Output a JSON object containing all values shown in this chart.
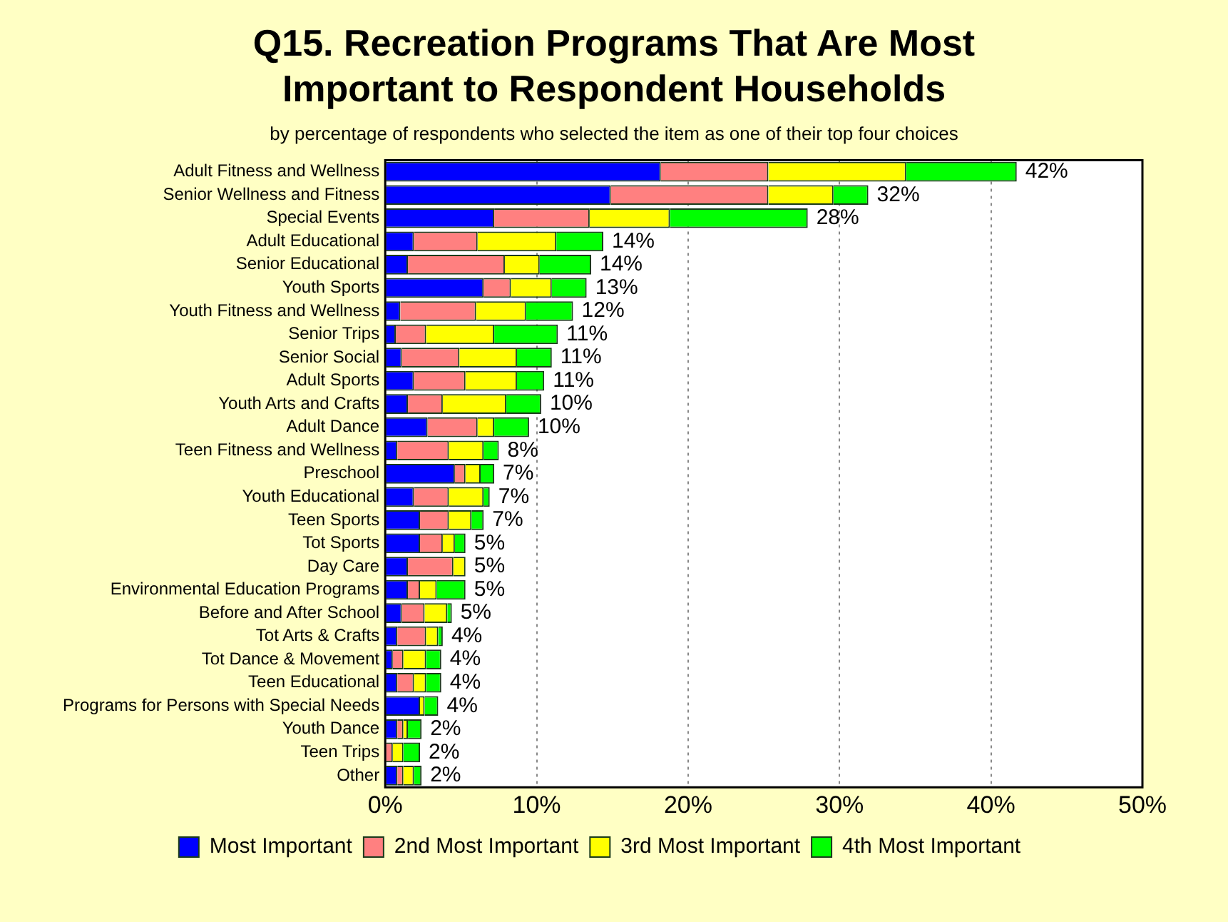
{
  "chart_data": {
    "type": "bar",
    "orientation": "horizontal",
    "stacked": true,
    "title": "Q15. Recreation Programs That Are Most Important to Respondent Households",
    "subtitle": "by percentage of respondents who selected the item as one of their top four choices",
    "categories": [
      "Adult Fitness and Wellness",
      "Senior Wellness and Fitness",
      "Special Events",
      "Adult Educational",
      "Senior Educational",
      "Youth Sports",
      "Youth Fitness and Wellness",
      "Senior Trips",
      "Senior Social",
      "Adult Sports",
      "Youth Arts and Crafts",
      "Adult Dance",
      "Teen Fitness and Wellness",
      "Preschool",
      "Youth Educational",
      "Teen Sports",
      "Tot Sports",
      "Day Care",
      "Environmental Education Programs",
      "Before and After School",
      "Tot Arts & Crafts",
      "Tot Dance & Movement",
      "Teen Educational",
      "Programs for Persons with Special Needs",
      "Youth Dance",
      "Teen Trips",
      "Other"
    ],
    "series": [
      {
        "name": "Most Important",
        "color": "#0000ff",
        "values": [
          18.2,
          14.9,
          7.2,
          1.9,
          1.5,
          6.5,
          1.0,
          0.7,
          1.1,
          1.9,
          1.5,
          2.8,
          0.8,
          4.6,
          1.9,
          2.3,
          2.3,
          1.5,
          1.5,
          1.1,
          0.8,
          0.5,
          0.8,
          2.3,
          0.8,
          0,
          0.8
        ]
      },
      {
        "name": "2nd Most Important",
        "color": "#ff8080",
        "values": [
          7.1,
          10.4,
          6.3,
          4.2,
          6.4,
          1.8,
          5.0,
          2.0,
          3.8,
          3.4,
          2.3,
          3.3,
          3.4,
          0.7,
          2.3,
          1.9,
          1.5,
          3.0,
          0.8,
          1.5,
          1.9,
          0.7,
          1.1,
          0,
          0.4,
          0.5,
          0.4
        ]
      },
      {
        "name": "3rd Most Important",
        "color": "#ffff00",
        "values": [
          9.1,
          4.3,
          5.3,
          5.2,
          2.3,
          2.7,
          3.3,
          4.5,
          3.8,
          3.4,
          4.2,
          1.1,
          2.3,
          1.0,
          2.3,
          1.5,
          0.8,
          0.8,
          1.1,
          1.5,
          0.8,
          1.5,
          0.8,
          0.3,
          0.3,
          0.7,
          0.7
        ]
      },
      {
        "name": "4th Most Important",
        "color": "#00ff00",
        "values": [
          7.3,
          2.3,
          9.1,
          3.1,
          3.4,
          2.3,
          3.1,
          4.2,
          2.3,
          1.8,
          2.3,
          2.3,
          1.0,
          0.9,
          0.4,
          0.8,
          0.7,
          0,
          1.9,
          0.3,
          0.3,
          1.0,
          1.0,
          0.9,
          0.9,
          1.1,
          0.5
        ]
      }
    ],
    "totals": [
      "42%",
      "32%",
      "28%",
      "14%",
      "14%",
      "13%",
      "12%",
      "11%",
      "11%",
      "11%",
      "10%",
      "10%",
      "8%",
      "7%",
      "7%",
      "7%",
      "5%",
      "5%",
      "5%",
      "5%",
      "4%",
      "4%",
      "4%",
      "4%",
      "2%",
      "2%",
      "2%"
    ],
    "xlim": [
      0,
      50
    ],
    "xticks": [
      {
        "value": 0,
        "label": "0%"
      },
      {
        "value": 10,
        "label": "10%"
      },
      {
        "value": 20,
        "label": "20%"
      },
      {
        "value": 30,
        "label": "30%"
      },
      {
        "value": 40,
        "label": "40%"
      },
      {
        "value": 50,
        "label": "50%"
      }
    ],
    "grid": "x",
    "legend": "bottom"
  }
}
